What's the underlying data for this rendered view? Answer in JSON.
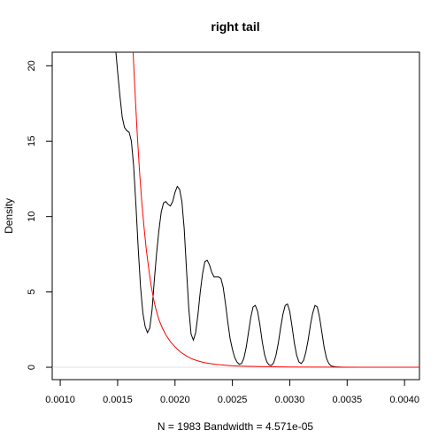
{
  "chart_data": {
    "type": "line",
    "title": "right tail",
    "ylabel": "Density",
    "sub": "N = 1983   Bandwidth = 4.571e-05",
    "xlim": [
      0.00093,
      0.00413
    ],
    "ylim": [
      -0.82,
      20.9
    ],
    "x_ticks": [
      0.001,
      0.0015,
      0.002,
      0.0025,
      0.003,
      0.0035,
      0.004
    ],
    "x_tick_labels": [
      "0.0010",
      "0.0015",
      "0.0020",
      "0.0025",
      "0.0030",
      "0.0035",
      "0.0040"
    ],
    "y_ticks": [
      0,
      5,
      10,
      15,
      20
    ],
    "y_tick_labels": [
      "0",
      "5",
      "10",
      "15",
      "20"
    ],
    "grid": false,
    "zero_line": true,
    "series": [
      {
        "color": "#000000",
        "x": [
          0.001485,
          0.0015,
          0.00152,
          0.00154,
          0.00156,
          0.00158,
          0.0016,
          0.00162,
          0.00164,
          0.00166,
          0.00168,
          0.0017,
          0.00172,
          0.00174,
          0.00176,
          0.00178,
          0.0018,
          0.00182,
          0.00184,
          0.00186,
          0.00188,
          0.0019,
          0.00192,
          0.00194,
          0.00196,
          0.00198,
          0.002,
          0.00202,
          0.00204,
          0.00206,
          0.00208,
          0.0021,
          0.00212,
          0.00214,
          0.00216,
          0.00218,
          0.0022,
          0.00222,
          0.00224,
          0.00226,
          0.00228,
          0.0023,
          0.00232,
          0.00234,
          0.00236,
          0.00238,
          0.0024,
          0.00242,
          0.00244,
          0.00246,
          0.00248,
          0.0025,
          0.00252,
          0.00254,
          0.00256,
          0.00258,
          0.0026,
          0.00262,
          0.00264,
          0.00266,
          0.00268,
          0.0027,
          0.00272,
          0.00274,
          0.00276,
          0.00278,
          0.0028,
          0.00282,
          0.00284,
          0.00286,
          0.00288,
          0.0029,
          0.00292,
          0.00294,
          0.00296,
          0.00298,
          0.003,
          0.00302,
          0.00304,
          0.00306,
          0.00308,
          0.0031,
          0.00312,
          0.00314,
          0.00316,
          0.00318,
          0.0032,
          0.00322,
          0.00324,
          0.00326,
          0.00328,
          0.0033,
          0.00332,
          0.00334,
          0.00336,
          0.00338,
          0.0034,
          0.00342,
          0.00344,
          0.00346,
          0.00348,
          0.0035,
          0.00352,
          0.00354,
          0.00356,
          0.00358,
          0.0036,
          0.00362,
          0.00364,
          0.00368,
          0.00375,
          0.00385,
          0.00395,
          0.00405,
          0.00413
        ],
        "y": [
          20.9,
          19.6,
          18.0,
          16.6,
          15.9,
          15.7,
          15.6,
          15.0,
          13.3,
          10.7,
          7.8,
          5.3,
          3.6,
          2.7,
          2.3,
          2.6,
          3.8,
          5.8,
          7.6,
          9.1,
          10.3,
          10.9,
          11.0,
          10.8,
          10.7,
          11.0,
          11.6,
          12.0,
          11.8,
          11.0,
          9.2,
          6.5,
          3.9,
          2.2,
          1.8,
          2.3,
          3.5,
          5.0,
          6.2,
          7.0,
          7.1,
          6.8,
          6.3,
          6.0,
          6.0,
          6.0,
          5.9,
          5.3,
          4.2,
          3.0,
          1.9,
          1.2,
          0.65,
          0.35,
          0.2,
          0.25,
          0.6,
          1.3,
          2.3,
          3.3,
          4.0,
          4.1,
          3.7,
          2.8,
          1.7,
          0.85,
          0.35,
          0.15,
          0.12,
          0.3,
          0.8,
          1.6,
          2.6,
          3.5,
          4.1,
          4.2,
          3.7,
          2.7,
          1.6,
          0.8,
          0.35,
          0.25,
          0.45,
          1.0,
          1.8,
          2.8,
          3.6,
          4.1,
          4.0,
          3.3,
          2.3,
          1.3,
          0.6,
          0.25,
          0.1,
          0.05,
          0.03,
          0.02,
          0.01,
          0.0,
          0.0,
          0.0,
          0.0,
          0.0,
          0.0,
          0.0,
          0.0,
          0.0,
          0.0,
          0.0,
          0.0,
          0.0,
          0.0,
          0.0,
          0.0
        ]
      },
      {
        "color": "#ff0000",
        "x": [
          0.001635,
          0.00165,
          0.00167,
          0.00169,
          0.00171,
          0.00173,
          0.00175,
          0.00177,
          0.00179,
          0.00181,
          0.00183,
          0.00186,
          0.00189,
          0.00192,
          0.00196,
          0.002,
          0.00205,
          0.0021,
          0.00215,
          0.0022,
          0.00225,
          0.0023,
          0.00235,
          0.0024,
          0.00245,
          0.0025,
          0.0026,
          0.0027,
          0.0028,
          0.003,
          0.0033,
          0.0036,
          0.0039,
          0.00413
        ],
        "y": [
          20.9,
          18.5,
          15.6,
          13.1,
          11.0,
          9.3,
          7.8,
          6.6,
          5.5,
          4.65,
          3.95,
          3.15,
          2.6,
          2.15,
          1.7,
          1.35,
          1.0,
          0.75,
          0.55,
          0.42,
          0.32,
          0.25,
          0.2,
          0.16,
          0.13,
          0.1,
          0.07,
          0.05,
          0.04,
          0.02,
          0.01,
          0.005,
          0.002,
          0.001
        ]
      }
    ]
  }
}
